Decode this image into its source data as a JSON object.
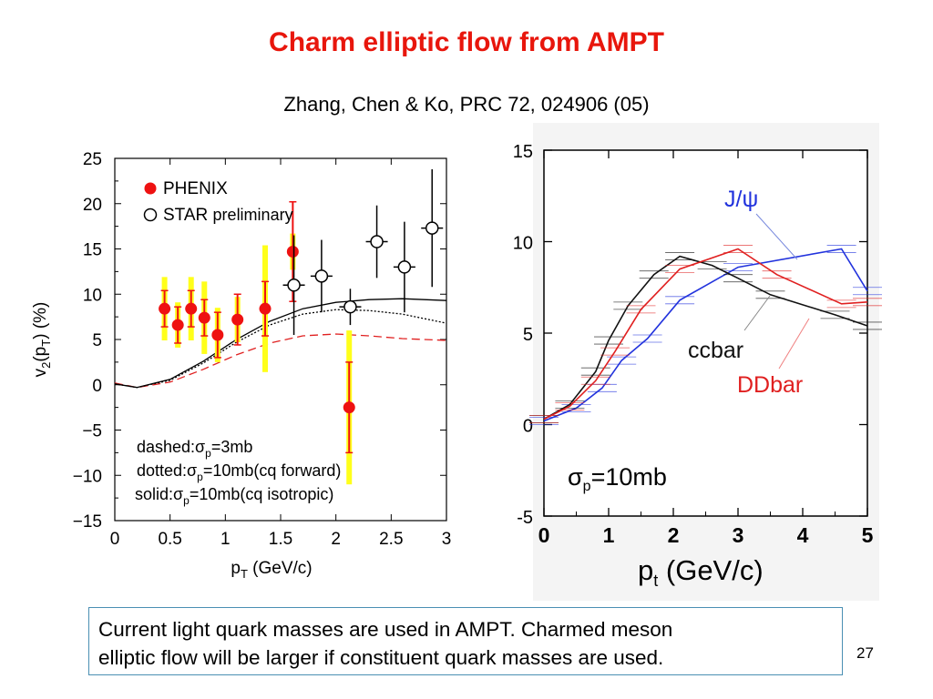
{
  "slide": {
    "title": "Charm elliptic flow from AMPT",
    "subtitle": "Zhang, Chen & Ko, PRC 72, 024906 (05)",
    "caption_line1": "Current light quark masses are used in AMPT. Charmed meson",
    "caption_line2": "elliptic flow will be larger if constituent quark masses are used.",
    "page_number": "27",
    "title_color": "#e8160c"
  },
  "chart_data": [
    {
      "type": "scatter",
      "xlabel": "p_T (GeV/c)",
      "ylabel": "v_2(p_T) (%)",
      "xlim": [
        0,
        3
      ],
      "ylim": [
        -15,
        25
      ],
      "xticks": [
        "0",
        "0.5",
        "1",
        "1.5",
        "2",
        "2.5",
        "3"
      ],
      "yticks": [
        "−15",
        "−10",
        "−5",
        "0",
        "5",
        "10",
        "15",
        "20",
        "25"
      ],
      "legend": [
        {
          "marker": "filled-circle",
          "label": "PHENIX"
        },
        {
          "marker": "open-circle",
          "label": "STAR",
          "label_suffix": "preliminary"
        }
      ],
      "annotation_lines": [
        {
          "prefix": "dashed:",
          "sigma": "σ",
          "sub": "p",
          "suffix": "=3mb"
        },
        {
          "prefix": "dotted:",
          "sigma": "σ",
          "sub": "p",
          "suffix": "=10mb(cq forward)"
        },
        {
          "prefix": "solid:",
          "sigma": "σ",
          "sub": "p",
          "suffix": "=10mb(cq isotropic)"
        }
      ],
      "series": [
        {
          "name": "PHENIX",
          "color": "#ee1111",
          "points": [
            {
              "x": 0.45,
              "y": 8.4,
              "err": 2.0,
              "sys": 3.5
            },
            {
              "x": 0.57,
              "y": 6.6,
              "err": 2.0,
              "sys": 2.5
            },
            {
              "x": 0.69,
              "y": 8.4,
              "err": 2.0,
              "sys": 3.5
            },
            {
              "x": 0.81,
              "y": 7.4,
              "err": 2.0,
              "sys": 4.0
            },
            {
              "x": 0.93,
              "y": 5.5,
              "err": 2.5,
              "sys": 3.0
            },
            {
              "x": 1.11,
              "y": 7.2,
              "err": 2.8,
              "sys": 2.5
            },
            {
              "x": 1.36,
              "y": 8.4,
              "err": 3.0,
              "sys": 7.0
            },
            {
              "x": 1.61,
              "y": 14.7,
              "err": 5.5,
              "sys": 2.0
            },
            {
              "x": 2.12,
              "y": -2.5,
              "err": 5.0,
              "sys": 8.5
            }
          ]
        },
        {
          "name": "STAR",
          "color": "#000000",
          "points": [
            {
              "x": 1.62,
              "y": 11.0,
              "err": 5.5
            },
            {
              "x": 1.87,
              "y": 12.0,
              "err": 4.0
            },
            {
              "x": 2.13,
              "y": 8.6,
              "err": 2.0
            },
            {
              "x": 2.37,
              "y": 15.8,
              "err": 4.0
            },
            {
              "x": 2.62,
              "y": 13.0,
              "err": 5.0
            },
            {
              "x": 2.87,
              "y": 17.3,
              "err": 6.5
            }
          ]
        }
      ],
      "curves": [
        {
          "style": "dashed",
          "color": "#e02020",
          "x": [
            0,
            0.2,
            0.5,
            0.8,
            1.1,
            1.4,
            1.7,
            2.0,
            2.3,
            2.6,
            3.0
          ],
          "y": [
            0.2,
            -0.3,
            0.3,
            1.7,
            3.3,
            4.6,
            5.4,
            5.6,
            5.4,
            5.1,
            4.9
          ]
        },
        {
          "style": "dotted",
          "color": "#000000",
          "x": [
            0,
            0.2,
            0.5,
            0.8,
            1.1,
            1.4,
            1.7,
            2.0,
            2.3,
            2.6,
            3.0
          ],
          "y": [
            0.1,
            -0.3,
            0.5,
            2.4,
            4.7,
            6.6,
            7.8,
            8.3,
            8.2,
            7.8,
            6.8
          ]
        },
        {
          "style": "solid",
          "color": "#000000",
          "x": [
            0,
            0.2,
            0.5,
            0.8,
            1.1,
            1.4,
            1.7,
            2.0,
            2.3,
            2.6,
            3.0
          ],
          "y": [
            0.1,
            -0.3,
            0.6,
            2.6,
            5.0,
            7.0,
            8.4,
            9.1,
            9.4,
            9.5,
            9.3
          ]
        }
      ]
    },
    {
      "type": "line",
      "xlabel": "p_t (GeV/c)",
      "xlim": [
        0,
        5
      ],
      "ylim": [
        -5,
        15
      ],
      "xticks": [
        "0",
        "1",
        "2",
        "3",
        "4",
        "5"
      ],
      "yticks": [
        "-5",
        "0",
        "5",
        "10",
        "15"
      ],
      "annotation": {
        "sigma": "σ",
        "sub": "p",
        "suffix": "=10mb"
      },
      "series": [
        {
          "name": "J/ψ",
          "color": "#2233dd",
          "x": [
            0.0,
            0.5,
            0.9,
            1.2,
            1.6,
            2.1,
            3.0,
            4.6,
            5.0
          ],
          "y": [
            0.2,
            0.9,
            2.0,
            3.5,
            4.7,
            6.8,
            8.6,
            9.6,
            7.3
          ]
        },
        {
          "name": "ccbar",
          "color": "#111111",
          "x": [
            0.0,
            0.4,
            0.8,
            1.0,
            1.3,
            1.7,
            2.1,
            2.6,
            3.0,
            3.5,
            4.5,
            5.0
          ],
          "y": [
            0.3,
            1.1,
            2.9,
            4.6,
            6.5,
            8.2,
            9.2,
            8.7,
            8.0,
            7.1,
            6.0,
            5.4
          ]
        },
        {
          "name": "DDbar",
          "color": "#e02020",
          "x": [
            0.0,
            0.4,
            0.8,
            1.1,
            1.5,
            2.1,
            3.0,
            3.6,
            4.6,
            5.0
          ],
          "y": [
            0.3,
            1.0,
            2.4,
            4.0,
            6.3,
            8.5,
            9.6,
            8.2,
            6.6,
            6.7
          ]
        }
      ]
    }
  ]
}
